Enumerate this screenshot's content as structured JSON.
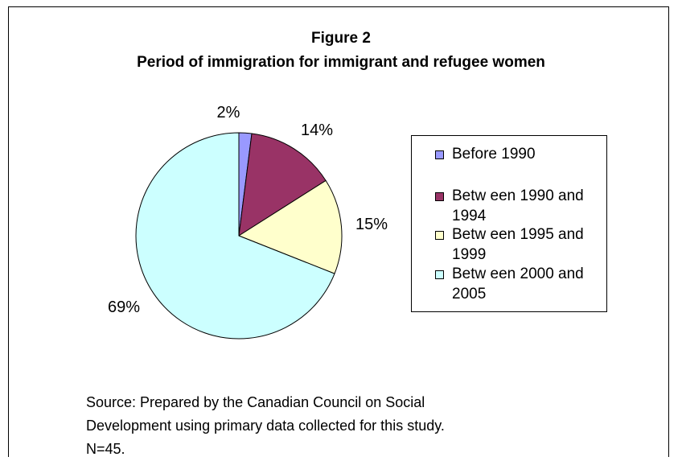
{
  "chart_data": {
    "type": "pie",
    "title": "Figure 2",
    "subtitle": "Period of immigration for immigrant and refugee women",
    "slices": [
      {
        "label": "Before 1990",
        "value": 2,
        "data_label": "2%",
        "color": "#9999ff"
      },
      {
        "label": "Betw een 1990 and 1994",
        "value": 14,
        "data_label": "14%",
        "color": "#993366"
      },
      {
        "label": "Betw een 1995 and 1999",
        "value": 15,
        "data_label": "15%",
        "color": "#ffffcc"
      },
      {
        "label": "Betw een 2000 and 2005",
        "value": 69,
        "data_label": "69%",
        "color": "#ccffff"
      }
    ],
    "legend": {
      "position": "right",
      "items": [
        {
          "line1": "Before 1990",
          "line2": ""
        },
        {
          "line1": "Betw een 1990 and",
          "line2": "1994"
        },
        {
          "line1": "Betw een 1995 and",
          "line2": "1999"
        },
        {
          "line1": "Betw een 2000 and",
          "line2": "2005"
        }
      ]
    }
  },
  "source": {
    "line1": "Source: Prepared by the Canadian Council on Social",
    "line2": "Development using primary data collected for this study.",
    "line3": "N=45."
  }
}
